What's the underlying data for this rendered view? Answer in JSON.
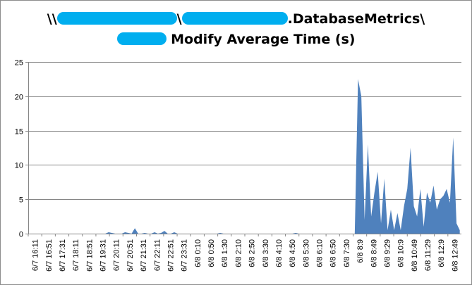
{
  "chart_data": {
    "type": "area",
    "title_line1_start": "\\\\",
    "title_line1_mid": "\\",
    "title_line1_end": ".DatabaseMetrics\\",
    "title_line2_end": " Modify Average Time (s)",
    "color": "#4f81bd",
    "ylim": [
      0,
      25
    ],
    "yticks": [
      0,
      5,
      10,
      15,
      20,
      25
    ],
    "grid": true,
    "legend": "none",
    "xtick_labels": [
      "6/7 16:11",
      "6/7 16:51",
      "6/7 17:31",
      "6/7 18:11",
      "6/7 18:51",
      "6/7 19:31",
      "6/7 20:11",
      "6/7 20:51",
      "6/7 21:31",
      "6/7 22:11",
      "6/7 22:51",
      "6/7 23:31",
      "6/8 0:10",
      "6/8 0:50",
      "6/8 1:30",
      "6/8 2:10",
      "6/8 2:50",
      "6/8 3:30",
      "6/8 4:10",
      "6/8 4:50",
      "6/8 5:30",
      "6/8 6:10",
      "6/8 6:50",
      "6/8 7:30",
      "6/8 8:9",
      "6/8 8:49",
      "6/8 9:29",
      "6/8 10:9",
      "6/8 10:49",
      "6/8 11:29",
      "6/8 12:9",
      "6/8 12:49"
    ],
    "values": [
      0,
      0,
      0,
      0,
      0,
      0,
      0,
      0,
      0,
      0,
      0,
      0,
      0,
      0,
      0,
      0,
      0,
      0,
      0,
      0,
      0,
      0,
      0,
      0,
      0.2,
      0.1,
      0,
      0,
      0,
      0.2,
      0.1,
      0,
      0.8,
      0,
      0,
      0.1,
      0,
      0,
      0.2,
      0,
      0.1,
      0.4,
      0,
      0,
      0.2,
      0,
      0,
      0,
      0,
      0,
      0,
      0,
      0,
      0,
      0,
      0,
      0,
      0,
      0.1,
      0,
      0,
      0,
      0,
      0,
      0,
      0,
      0,
      0,
      0,
      0,
      0,
      0,
      0,
      0,
      0,
      0,
      0,
      0,
      0,
      0,
      0,
      0.1,
      0,
      0,
      0,
      0,
      0,
      0,
      0,
      0,
      0,
      0,
      0,
      0,
      0,
      0,
      0,
      0,
      0,
      0,
      22.5,
      20,
      2,
      13,
      2.5,
      6,
      9,
      1.5,
      8,
      0.5,
      3.5,
      0.5,
      3,
      0.5,
      4,
      6.5,
      12.5,
      4,
      2.5,
      6.5,
      1,
      6,
      4.5,
      7,
      3.5,
      5,
      5.5,
      6.5,
      4.5,
      14,
      1.5,
      0.5
    ]
  }
}
